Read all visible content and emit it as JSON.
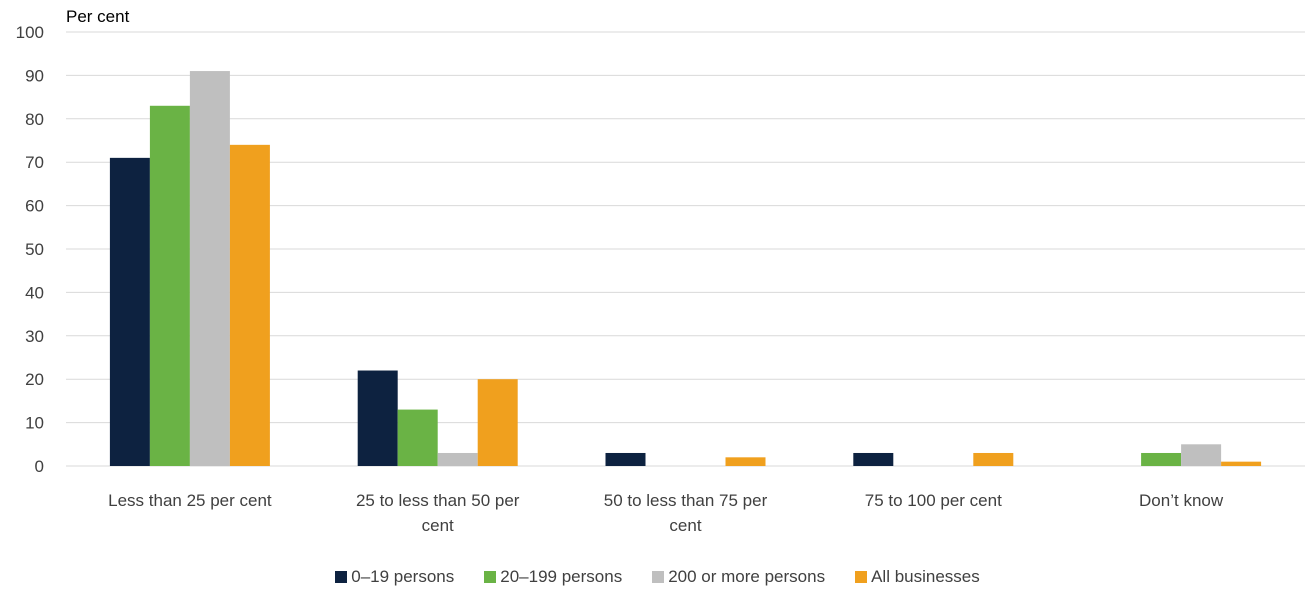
{
  "chart_data": {
    "type": "bar",
    "ylabel": "Per cent",
    "ylim": [
      0,
      100
    ],
    "yticks": [
      0,
      10,
      20,
      30,
      40,
      50,
      60,
      70,
      80,
      90,
      100
    ],
    "grid": true,
    "legend_position": "bottom",
    "categories": [
      [
        "Less than 25 per cent"
      ],
      [
        "25 to less than 50 per",
        "cent"
      ],
      [
        "50 to less than 75 per",
        "cent"
      ],
      [
        "75 to 100 per cent"
      ],
      [
        "Don’t know"
      ]
    ],
    "series": [
      {
        "name": "0–19 persons",
        "color": "#0d2240",
        "values": [
          71,
          22,
          3,
          3,
          0
        ]
      },
      {
        "name": "20–199 persons",
        "color": "#6ab345",
        "values": [
          83,
          13,
          0,
          0,
          3
        ]
      },
      {
        "name": "200 or more persons",
        "color": "#bfbfbf",
        "values": [
          91,
          3,
          0,
          0,
          5
        ]
      },
      {
        "name": "All businesses",
        "color": "#f0a01e",
        "values": [
          74,
          20,
          2,
          3,
          1
        ]
      }
    ]
  }
}
